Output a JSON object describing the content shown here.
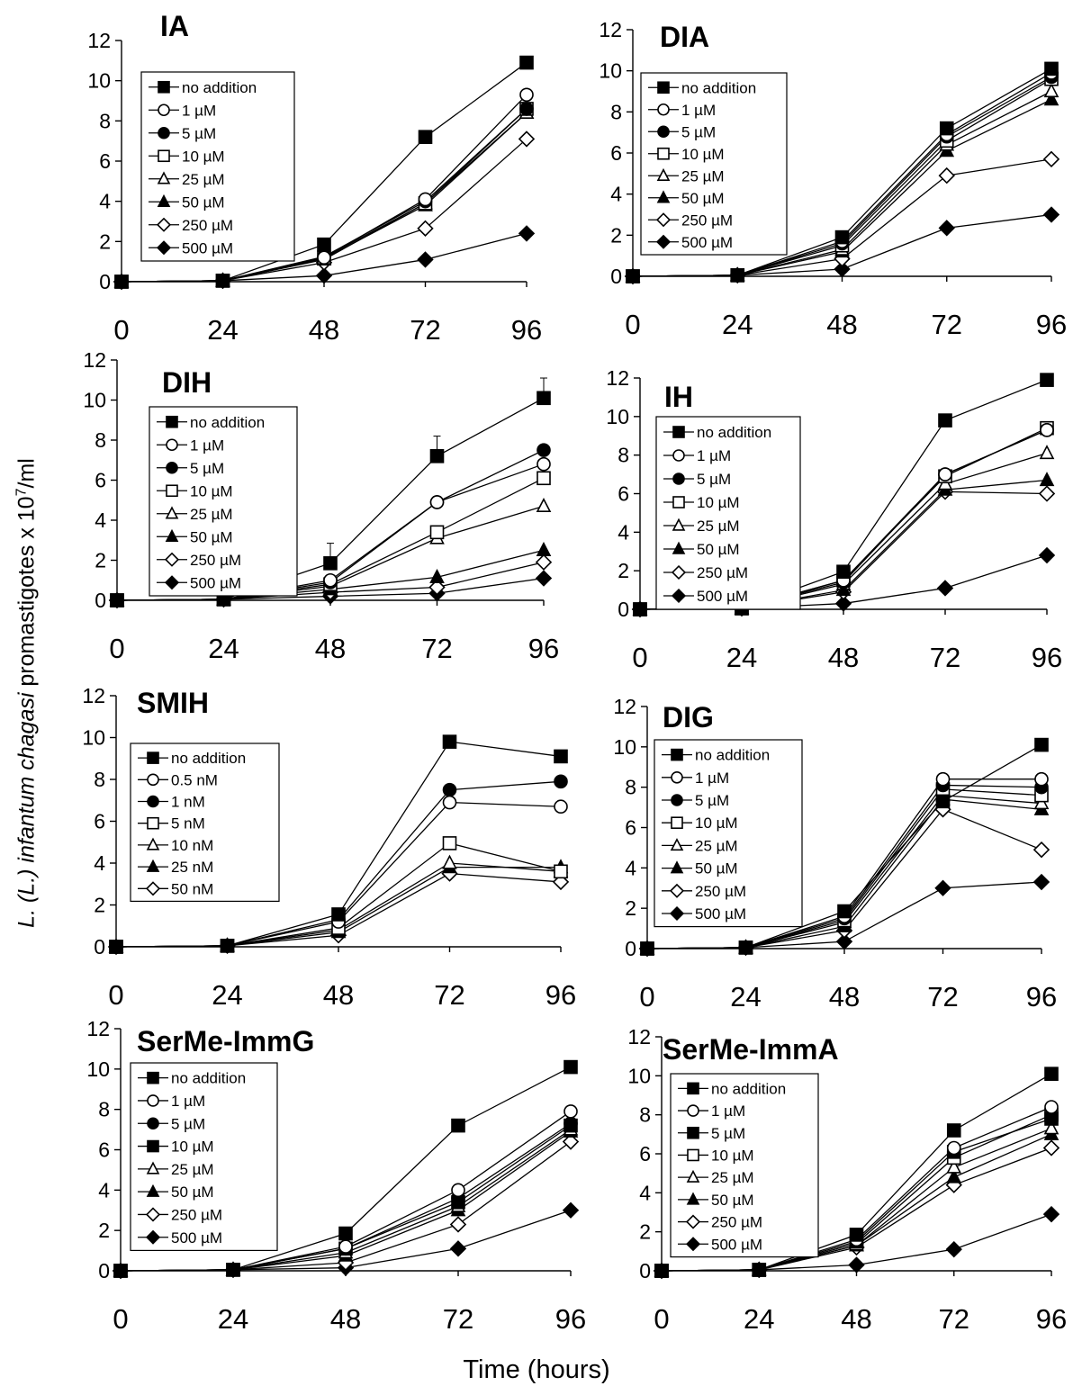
{
  "figure": {
    "ylabel_prefix": "L. (L.) infantum chagasi",
    "ylabel_main": " promastigotes x 10",
    "ylabel_exp": "7",
    "ylabel_suffix": "/ml",
    "xlabel": "Time (hours)"
  },
  "chart_data": [
    {
      "type": "line",
      "title": "IA",
      "x": [
        0,
        24,
        48,
        72,
        96
      ],
      "xticks": [
        "0",
        "24",
        "48",
        "72",
        "96"
      ],
      "ylim": [
        0,
        12
      ],
      "yticks": [
        0,
        2,
        4,
        6,
        8,
        10,
        12
      ],
      "legend": "top-left",
      "series": [
        {
          "name": "no addition",
          "marker": "square-filled",
          "values": [
            0,
            0.05,
            1.85,
            7.2,
            10.9
          ]
        },
        {
          "name": "1 µM",
          "marker": "circle-open",
          "values": [
            0,
            0.05,
            1.2,
            4.1,
            9.3
          ]
        },
        {
          "name": "5 µM",
          "marker": "circle-filled",
          "values": [
            0,
            0.05,
            1.25,
            4.0,
            8.6
          ]
        },
        {
          "name": "10 µM",
          "marker": "square-open",
          "values": [
            0,
            0.05,
            1.2,
            3.9,
            8.6
          ]
        },
        {
          "name": "25 µM",
          "marker": "triangle-open",
          "values": [
            0,
            0.05,
            1.15,
            3.8,
            8.4
          ]
        },
        {
          "name": "50 µM",
          "marker": "triangle-filled",
          "values": [
            0,
            0.05,
            1.1,
            3.9,
            8.4
          ]
        },
        {
          "name": "250 µM",
          "marker": "diamond-open",
          "values": [
            0,
            0.05,
            0.95,
            2.65,
            7.1
          ]
        },
        {
          "name": "500 µM",
          "marker": "diamond-filled",
          "values": [
            0,
            0.05,
            0.3,
            1.1,
            2.4
          ]
        }
      ]
    },
    {
      "type": "line",
      "title": "DIA",
      "x": [
        0,
        24,
        48,
        72,
        96
      ],
      "xticks": [
        "0",
        "24",
        "48",
        "72",
        "96"
      ],
      "ylim": [
        0,
        12
      ],
      "yticks": [
        0,
        2,
        4,
        6,
        8,
        10,
        12
      ],
      "legend": "top-left",
      "series": [
        {
          "name": "no addition",
          "marker": "square-filled",
          "values": [
            0,
            0.05,
            1.9,
            7.2,
            10.1
          ]
        },
        {
          "name": "1 µM",
          "marker": "circle-open",
          "values": [
            0,
            0.05,
            1.7,
            6.9,
            9.9
          ]
        },
        {
          "name": "5 µM",
          "marker": "circle-filled",
          "values": [
            0,
            0.05,
            1.6,
            6.8,
            9.7
          ]
        },
        {
          "name": "10 µM",
          "marker": "square-open",
          "values": [
            0,
            0.05,
            1.5,
            6.6,
            9.6
          ]
        },
        {
          "name": "25 µM",
          "marker": "triangle-open",
          "values": [
            0,
            0.05,
            1.3,
            6.4,
            9.0
          ]
        },
        {
          "name": "50 µM",
          "marker": "triangle-filled",
          "values": [
            0,
            0.05,
            1.2,
            6.1,
            8.6
          ]
        },
        {
          "name": "250 µM",
          "marker": "diamond-open",
          "values": [
            0,
            0.05,
            0.85,
            4.9,
            5.7
          ]
        },
        {
          "name": "500 µM",
          "marker": "diamond-filled",
          "values": [
            0,
            0.05,
            0.35,
            2.35,
            3.0
          ]
        }
      ]
    },
    {
      "type": "line",
      "title": "DIH",
      "x": [
        0,
        24,
        48,
        72,
        96
      ],
      "xticks": [
        "0",
        "24",
        "48",
        "72",
        "96"
      ],
      "ylim": [
        0,
        12
      ],
      "yticks": [
        0,
        2,
        4,
        6,
        8,
        10,
        12
      ],
      "legend": "top-left",
      "series": [
        {
          "name": "no addition",
          "marker": "square-filled",
          "values": [
            0,
            0.05,
            1.85,
            7.2,
            10.1
          ],
          "error": [
            1.0,
            1.0,
            1.0,
            1.0,
            1.0
          ]
        },
        {
          "name": "1  µM",
          "marker": "circle-open",
          "values": [
            0,
            0.05,
            1.0,
            4.9,
            6.8
          ]
        },
        {
          "name": "5  µM",
          "marker": "circle-filled",
          "values": [
            0,
            0.05,
            0.9,
            4.9,
            7.5
          ]
        },
        {
          "name": "10  µM",
          "marker": "square-open",
          "values": [
            0,
            0.05,
            0.8,
            3.4,
            6.1
          ]
        },
        {
          "name": "25  µM",
          "marker": "triangle-open",
          "values": [
            0,
            0.05,
            0.7,
            3.1,
            4.7
          ]
        },
        {
          "name": "50  µM",
          "marker": "triangle-filled",
          "values": [
            0,
            0.05,
            0.55,
            1.15,
            2.5
          ]
        },
        {
          "name": "250  µM",
          "marker": "diamond-open",
          "values": [
            0,
            0.05,
            0.4,
            0.65,
            1.9
          ]
        },
        {
          "name": "500  µM",
          "marker": "diamond-filled",
          "values": [
            0,
            0.05,
            0.2,
            0.35,
            1.1
          ]
        }
      ]
    },
    {
      "type": "line",
      "title": "IH",
      "x": [
        0,
        24,
        48,
        72,
        96
      ],
      "xticks": [
        "0",
        "24",
        "48",
        "72",
        "96"
      ],
      "ylim": [
        0,
        12
      ],
      "yticks": [
        0,
        2,
        4,
        6,
        8,
        10,
        12
      ],
      "legend": "top-left",
      "series": [
        {
          "name": "no addition",
          "marker": "square-filled",
          "values": [
            0,
            0.05,
            1.95,
            9.8,
            11.9
          ]
        },
        {
          "name": "1  µM",
          "marker": "circle-open",
          "values": [
            0,
            0.05,
            1.5,
            7.0,
            9.3
          ]
        },
        {
          "name": "5  µM",
          "marker": "circle-filled",
          "values": [
            0,
            0.05,
            1.4,
            7.0,
            9.3
          ]
        },
        {
          "name": "10  µM",
          "marker": "square-open",
          "values": [
            0,
            0.05,
            1.5,
            6.9,
            9.4
          ]
        },
        {
          "name": "25  µM",
          "marker": "triangle-open",
          "values": [
            0,
            0.05,
            1.3,
            6.5,
            8.1
          ]
        },
        {
          "name": "50  µM",
          "marker": "triangle-filled",
          "values": [
            0,
            0.05,
            1.0,
            6.2,
            6.7
          ]
        },
        {
          "name": "250  µM",
          "marker": "diamond-open",
          "values": [
            0,
            0.05,
            0.9,
            6.1,
            6.0
          ]
        },
        {
          "name": "500  µM",
          "marker": "diamond-filled",
          "values": [
            0,
            0.05,
            0.3,
            1.1,
            2.8
          ]
        }
      ]
    },
    {
      "type": "line",
      "title": "SMIH",
      "x": [
        0,
        24,
        48,
        72,
        96
      ],
      "xticks": [
        "0",
        "24",
        "48",
        "72",
        "96"
      ],
      "ylim": [
        0,
        12
      ],
      "yticks": [
        0,
        2,
        4,
        6,
        8,
        10,
        12
      ],
      "legend": "top-left",
      "series": [
        {
          "name": "no addition",
          "marker": "square-filled",
          "values": [
            0,
            0.05,
            1.55,
            9.8,
            9.1
          ]
        },
        {
          "name": "0.5 nM",
          "marker": "circle-open",
          "values": [
            0,
            0.05,
            1.2,
            6.9,
            6.7
          ]
        },
        {
          "name": "1 nM",
          "marker": "circle-filled",
          "values": [
            0,
            0.05,
            1.3,
            7.5,
            7.9
          ]
        },
        {
          "name": "5 nM",
          "marker": "square-open",
          "values": [
            0,
            0.05,
            0.9,
            4.95,
            3.6
          ]
        },
        {
          "name": "10 nM",
          "marker": "triangle-open",
          "values": [
            0,
            0.05,
            0.8,
            4.0,
            3.6
          ]
        },
        {
          "name": "25 nM",
          "marker": "triangle-filled",
          "values": [
            0,
            0.05,
            0.7,
            3.8,
            3.8
          ]
        },
        {
          "name": "50 nM",
          "marker": "diamond-open",
          "values": [
            0,
            0.05,
            0.55,
            3.5,
            3.1
          ]
        }
      ]
    },
    {
      "type": "line",
      "title": "DIG",
      "x": [
        0,
        24,
        48,
        72,
        96
      ],
      "xticks": [
        "0",
        "24",
        "48",
        "72",
        "96"
      ],
      "ylim": [
        0,
        12
      ],
      "yticks": [
        0,
        2,
        4,
        6,
        8,
        10,
        12
      ],
      "legend": "top-left",
      "series": [
        {
          "name": "no addition",
          "marker": "square-filled",
          "values": [
            0,
            0.05,
            1.85,
            7.3,
            10.1
          ]
        },
        {
          "name": "1  µM",
          "marker": "circle-open",
          "values": [
            0,
            0.05,
            1.6,
            8.4,
            8.4
          ]
        },
        {
          "name": "5  µM",
          "marker": "circle-filled",
          "values": [
            0,
            0.05,
            1.5,
            8.1,
            8.0
          ]
        },
        {
          "name": "10  µM",
          "marker": "square-open",
          "values": [
            0,
            0.05,
            1.4,
            7.9,
            7.6
          ]
        },
        {
          "name": "25  µM",
          "marker": "triangle-open",
          "values": [
            0,
            0.05,
            1.3,
            7.6,
            7.2
          ]
        },
        {
          "name": "50  µM",
          "marker": "triangle-filled",
          "values": [
            0,
            0.05,
            1.1,
            7.4,
            6.9
          ]
        },
        {
          "name": "250  µM",
          "marker": "diamond-open",
          "values": [
            0,
            0.05,
            0.9,
            6.9,
            4.9
          ]
        },
        {
          "name": "500  µM",
          "marker": "diamond-filled",
          "values": [
            0,
            0.05,
            0.35,
            3.0,
            3.3
          ]
        }
      ]
    },
    {
      "type": "line",
      "title": "SerMe-ImmG",
      "x": [
        0,
        24,
        48,
        72,
        96
      ],
      "xticks": [
        "0",
        "24",
        "48",
        "72",
        "96"
      ],
      "ylim": [
        0,
        12
      ],
      "yticks": [
        0,
        2,
        4,
        6,
        8,
        10,
        12
      ],
      "legend": "top-left",
      "series": [
        {
          "name": "no addition",
          "marker": "square-filled",
          "values": [
            0,
            0.05,
            1.85,
            7.2,
            10.1
          ]
        },
        {
          "name": "1 µM",
          "marker": "circle-open",
          "values": [
            0,
            0.05,
            1.2,
            4.0,
            7.9
          ]
        },
        {
          "name": "5 µM",
          "marker": "circle-filled",
          "values": [
            0,
            0.05,
            1.1,
            3.6,
            7.3
          ]
        },
        {
          "name": "10 µM",
          "marker": "square-filled",
          "values": [
            0,
            0.05,
            1.1,
            3.4,
            7.2
          ]
        },
        {
          "name": "25 µM",
          "marker": "triangle-open",
          "values": [
            0,
            0.05,
            0.9,
            3.2,
            7.0
          ]
        },
        {
          "name": "50 µM",
          "marker": "triangle-filled",
          "values": [
            0,
            0.05,
            0.75,
            3.0,
            6.9
          ]
        },
        {
          "name": "250 µM",
          "marker": "diamond-open",
          "values": [
            0,
            0.05,
            0.4,
            2.3,
            6.4
          ]
        },
        {
          "name": "500 µM",
          "marker": "diamond-filled",
          "values": [
            0,
            0.05,
            0.15,
            1.1,
            3.0
          ]
        }
      ]
    },
    {
      "type": "line",
      "title": "SerMe-ImmA",
      "x": [
        0,
        24,
        48,
        72,
        96
      ],
      "xticks": [
        "0",
        "24",
        "48",
        "72",
        "96"
      ],
      "ylim": [
        0,
        12
      ],
      "yticks": [
        0,
        2,
        4,
        6,
        8,
        10,
        12
      ],
      "legend": "top-left",
      "series": [
        {
          "name": "no addition",
          "marker": "square-filled",
          "values": [
            0,
            0.05,
            1.85,
            7.2,
            10.1
          ]
        },
        {
          "name": "1  µM",
          "marker": "circle-open",
          "values": [
            0,
            0.05,
            1.6,
            6.3,
            8.4
          ]
        },
        {
          "name": "5  µM",
          "marker": "square-filled",
          "values": [
            0,
            0.05,
            1.5,
            6.1,
            7.8
          ]
        },
        {
          "name": "10  µM",
          "marker": "square-open",
          "values": [
            0,
            0.05,
            1.4,
            5.8,
            8.0
          ]
        },
        {
          "name": "25  µM",
          "marker": "triangle-open",
          "values": [
            0,
            0.05,
            1.3,
            5.3,
            7.3
          ]
        },
        {
          "name": "50  µM",
          "marker": "triangle-filled",
          "values": [
            0,
            0.05,
            1.3,
            4.8,
            7.0
          ]
        },
        {
          "name": "250  µM",
          "marker": "diamond-open",
          "values": [
            0,
            0.05,
            1.2,
            4.4,
            6.3
          ]
        },
        {
          "name": "500  µM",
          "marker": "diamond-filled",
          "values": [
            0,
            0.05,
            0.3,
            1.1,
            2.9
          ]
        }
      ]
    }
  ]
}
